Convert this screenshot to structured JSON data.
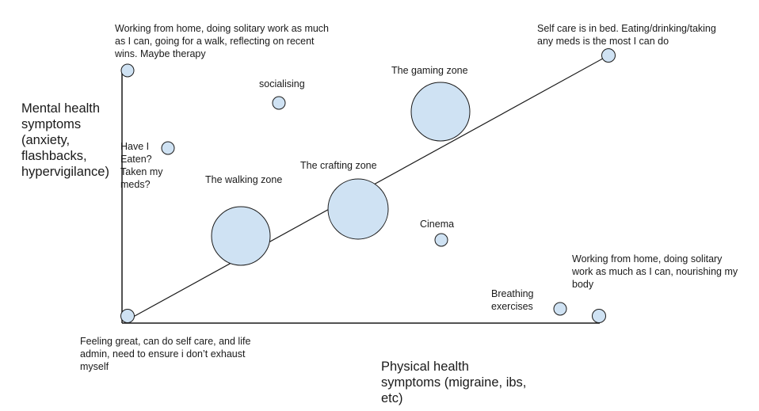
{
  "axes": {
    "y_label": "Mental health\nsymptoms\n(anxiety,\nflashbacks,\nhypervigilance)",
    "x_label": "Physical health\nsymptoms (migraine, ibs,\netc)"
  },
  "labels": {
    "top_left": "Working from home, doing solitary work as much\nas I can, going for a walk, reflecting on recent\nwins. Maybe therapy",
    "top_right": "Self care is in bed. Eating/drinking/taking\nany meds is the most I can do",
    "socialising": "socialising",
    "gaming_zone": "The gaming zone",
    "have_i_eaten": "Have I\nEaten?\nTaken my\nmeds?",
    "crafting_zone": "The crafting zone",
    "walking_zone": "The walking zone",
    "cinema": "Cinema",
    "bottom_right": "Working from home, doing solitary\nwork as much as I can, nourishing my\nbody",
    "breathing_exercises": "Breathing\nexercises",
    "bottom_left": "Feeling great, can do self care, and life\nadmin, need to ensure i don’t exhaust\nmyself"
  },
  "colors": {
    "bubble_fill": "#cfe2f3",
    "stroke": "#1a1a1a",
    "text": "#1a1a1a"
  }
}
